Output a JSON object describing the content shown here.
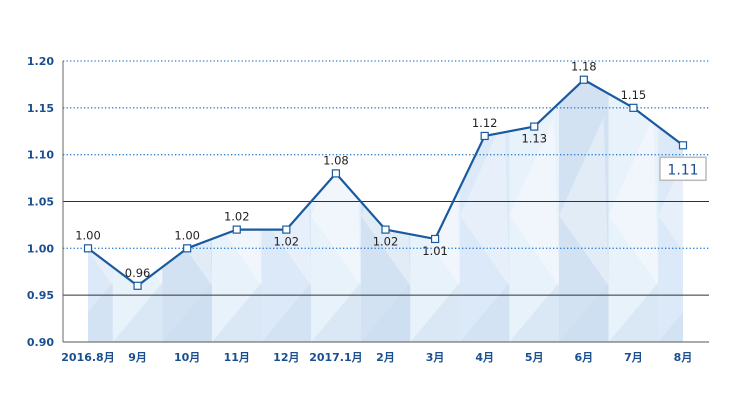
{
  "chart_data": {
    "type": "line",
    "categories": [
      "2016.8月",
      "9月",
      "10月",
      "11月",
      "12月",
      "2017.1月",
      "2月",
      "3月",
      "4月",
      "5月",
      "6月",
      "7月",
      "8月"
    ],
    "values": [
      1.0,
      0.96,
      1.0,
      1.02,
      1.02,
      1.08,
      1.02,
      1.01,
      1.12,
      1.13,
      1.18,
      1.15,
      1.11
    ],
    "data_labels": [
      "1.00",
      "0.96",
      "1.00",
      "1.02",
      "1.02",
      "1.08",
      "1.02",
      "1.01",
      "1.12",
      "1.13",
      "1.18",
      "1.15",
      "1.11"
    ],
    "label_position": [
      "above",
      "above",
      "above",
      "above",
      "below",
      "above",
      "below",
      "below",
      "above",
      "below",
      "above",
      "above",
      "boxed-below"
    ],
    "yticks": [
      "0.90",
      "0.95",
      "1.00",
      "1.05",
      "1.10",
      "1.15",
      "1.20"
    ],
    "ylim": [
      0.9,
      1.2
    ],
    "gridlines": [
      {
        "value": 0.95,
        "style": "solid"
      },
      {
        "value": 1.0,
        "style": "dotted"
      },
      {
        "value": 1.05,
        "style": "solid"
      },
      {
        "value": 1.1,
        "style": "dotted"
      },
      {
        "value": 1.15,
        "style": "dotted"
      },
      {
        "value": 1.2,
        "style": "dotted"
      }
    ],
    "title": "",
    "xlabel": "",
    "ylabel": "",
    "colors": {
      "line": "#1a5a9e",
      "tick_text": "#1a4f8f",
      "area_light": "#e8f2fb",
      "area_mid": "#d6e6f6",
      "area_dark": "#c9dbf0",
      "solid_grid": "#333333",
      "dotted_grid": "#2f7fcf",
      "callout_border": "#bbbbbb"
    }
  }
}
